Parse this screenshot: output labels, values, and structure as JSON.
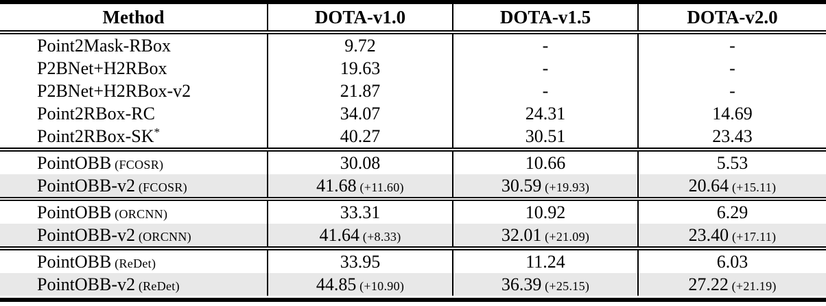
{
  "table": {
    "highlight_color": "#e8e8e8",
    "columns": [
      "Method",
      "DOTA-v1.0",
      "DOTA-v1.5",
      "DOTA-v2.0"
    ],
    "rows": [
      {
        "method": "Point2Mask-RBox",
        "sup": "",
        "variant": "",
        "highlight": false,
        "group_start": false,
        "cells": [
          {
            "value": "9.72",
            "delta": ""
          },
          {
            "value": "-",
            "delta": ""
          },
          {
            "value": "-",
            "delta": ""
          }
        ]
      },
      {
        "method": "P2BNet+H2RBox",
        "sup": "",
        "variant": "",
        "highlight": false,
        "group_start": false,
        "cells": [
          {
            "value": "19.63",
            "delta": ""
          },
          {
            "value": "-",
            "delta": ""
          },
          {
            "value": "-",
            "delta": ""
          }
        ]
      },
      {
        "method": "P2BNet+H2RBox-v2",
        "sup": "",
        "variant": "",
        "highlight": false,
        "group_start": false,
        "cells": [
          {
            "value": "21.87",
            "delta": ""
          },
          {
            "value": "-",
            "delta": ""
          },
          {
            "value": "-",
            "delta": ""
          }
        ]
      },
      {
        "method": "Point2RBox-RC",
        "sup": "",
        "variant": "",
        "highlight": false,
        "group_start": false,
        "cells": [
          {
            "value": "34.07",
            "delta": ""
          },
          {
            "value": "24.31",
            "delta": ""
          },
          {
            "value": "14.69",
            "delta": ""
          }
        ]
      },
      {
        "method": "Point2RBox-SK",
        "sup": "*",
        "variant": "",
        "highlight": false,
        "group_start": false,
        "cells": [
          {
            "value": "40.27",
            "delta": ""
          },
          {
            "value": "30.51",
            "delta": ""
          },
          {
            "value": "23.43",
            "delta": ""
          }
        ]
      },
      {
        "method": "PointOBB",
        "sup": "",
        "variant": "(FCOSR)",
        "highlight": false,
        "group_start": true,
        "cells": [
          {
            "value": "30.08",
            "delta": ""
          },
          {
            "value": "10.66",
            "delta": ""
          },
          {
            "value": "5.53",
            "delta": ""
          }
        ]
      },
      {
        "method": "PointOBB-v2",
        "sup": "",
        "variant": "(FCOSR)",
        "highlight": true,
        "group_start": false,
        "cells": [
          {
            "value": "41.68",
            "delta": "(+11.60)"
          },
          {
            "value": "30.59",
            "delta": "(+19.93)"
          },
          {
            "value": "20.64",
            "delta": "(+15.11)"
          }
        ]
      },
      {
        "method": "PointOBB",
        "sup": "",
        "variant": "(ORCNN)",
        "highlight": false,
        "group_start": true,
        "cells": [
          {
            "value": "33.31",
            "delta": ""
          },
          {
            "value": "10.92",
            "delta": ""
          },
          {
            "value": "6.29",
            "delta": ""
          }
        ]
      },
      {
        "method": "PointOBB-v2",
        "sup": "",
        "variant": "(ORCNN)",
        "highlight": true,
        "group_start": false,
        "cells": [
          {
            "value": "41.64",
            "delta": "(+8.33)"
          },
          {
            "value": "32.01",
            "delta": "(+21.09)"
          },
          {
            "value": "23.40",
            "delta": "(+17.11)"
          }
        ]
      },
      {
        "method": "PointOBB",
        "sup": "",
        "variant": "(ReDet)",
        "highlight": false,
        "group_start": true,
        "cells": [
          {
            "value": "33.95",
            "delta": ""
          },
          {
            "value": "11.24",
            "delta": ""
          },
          {
            "value": "6.03",
            "delta": ""
          }
        ]
      },
      {
        "method": "PointOBB-v2",
        "sup": "",
        "variant": "(ReDet)",
        "highlight": true,
        "group_start": false,
        "cells": [
          {
            "value": "44.85",
            "delta": "(+10.90)"
          },
          {
            "value": "36.39",
            "delta": "(+25.15)"
          },
          {
            "value": "27.22",
            "delta": "(+21.19)"
          }
        ]
      }
    ]
  }
}
